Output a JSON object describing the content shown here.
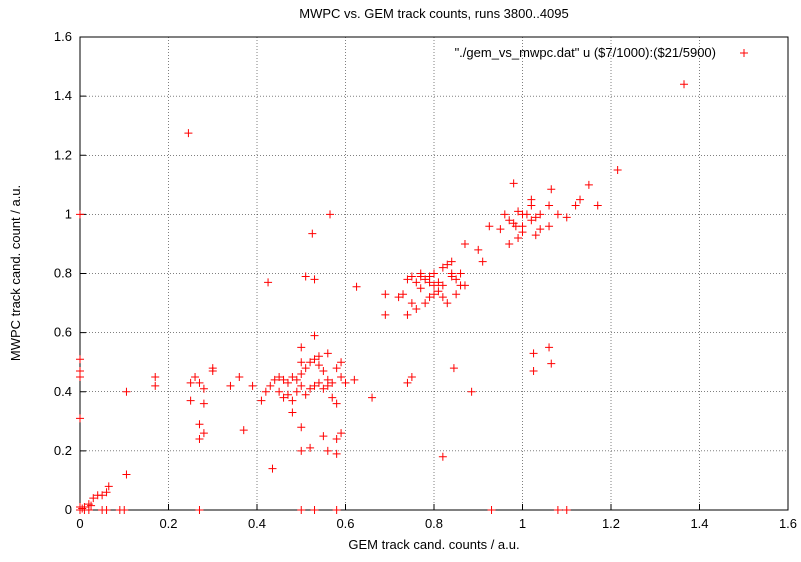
{
  "chart_data": {
    "type": "scatter",
    "title": "MWPC vs. GEM track counts, runs 3800..4095",
    "xlabel": "GEM track cand. counts / a.u.",
    "ylabel": "MWPC track cand. count / a.u.",
    "xlim": [
      0,
      1.6
    ],
    "ylim": [
      0,
      1.6
    ],
    "xticks": [
      0,
      0.2,
      0.4,
      0.6,
      0.8,
      1,
      1.2,
      1.4,
      1.6
    ],
    "yticks": [
      0,
      0.2,
      0.4,
      0.6,
      0.8,
      1,
      1.2,
      1.4,
      1.6
    ],
    "grid": true,
    "legend": "upper right",
    "series": [
      {
        "name": "\"./gem_vs_mwpc.dat\" u ($7/1000):($21/5900)",
        "color": "#ff0000",
        "x": [
          1.365,
          0.245,
          1.215,
          1.15,
          1.065,
          0.565,
          0,
          0.525,
          0.98,
          0.425,
          0.53,
          0.51,
          0.625,
          1.06,
          1.025,
          1.065,
          1.025,
          0.82,
          0.435,
          0.845,
          0.885,
          0.105,
          0.105,
          0.065,
          0.96,
          0.97,
          0.99,
          1.0,
          1.01,
          1.02,
          1.02,
          1.03,
          1.04,
          1.06,
          1.08,
          1.1,
          1.13,
          1.12,
          1.17,
          1.0,
          1.03,
          0.99,
          0.97,
          0.95,
          0.925,
          0.87,
          0.9,
          1.0,
          0.98,
          1.04,
          1.06,
          1.02,
          0.985,
          0.91,
          0.69,
          0.69,
          0.72,
          0.74,
          0.75,
          0.76,
          0.77,
          0.78,
          0.79,
          0.8,
          0.8,
          0.81,
          0.82,
          0.83,
          0.84,
          0.85,
          0.86,
          0.87,
          0.84,
          0.75,
          0.76,
          0.74,
          0.73,
          0.77,
          0.79,
          0.82,
          0.83,
          0.85,
          0.79,
          0.8,
          0.84,
          0.81,
          0.78,
          0.82,
          0.77,
          0.86,
          0.43,
          0.44,
          0.45,
          0.46,
          0.47,
          0.48,
          0.49,
          0.5,
          0.5,
          0.51,
          0.52,
          0.53,
          0.54,
          0.55,
          0.56,
          0.57,
          0.58,
          0.59,
          0.6,
          0.45,
          0.46,
          0.47,
          0.48,
          0.49,
          0.5,
          0.51,
          0.52,
          0.53,
          0.54,
          0.55,
          0.56,
          0.57,
          0.58,
          0.5,
          0.53,
          0.54,
          0.56,
          0.59,
          0.48,
          0.5,
          0.52,
          0.5,
          0.55,
          0.56,
          0.58,
          0.59,
          0.58,
          0.39,
          0.41,
          0.42,
          0.36,
          0.34,
          0.3,
          0.3,
          0.28,
          0.27,
          0.25,
          0.25,
          0.27,
          0.27,
          0.28,
          0.28,
          0.37,
          0.62,
          0.66,
          0.75,
          0.74,
          0.17,
          0.17,
          0.26,
          0,
          0.01,
          0.02,
          0.05,
          0.06,
          0.09,
          0.1,
          0.27,
          0.5,
          0.53,
          0.58,
          0.93,
          1.1,
          1.08,
          0,
          0,
          0,
          0,
          0,
          0.01,
          0.02,
          0.03,
          0.04,
          0.05,
          0.06,
          0.025,
          0.005
        ],
        "values": [
          1.44,
          1.275,
          1.15,
          1.1,
          1.085,
          1.0,
          1.0,
          0.935,
          1.105,
          0.77,
          0.78,
          0.79,
          0.755,
          0.55,
          0.53,
          0.495,
          0.47,
          0.18,
          0.14,
          0.48,
          0.4,
          0.4,
          0.12,
          0.08,
          1.0,
          0.98,
          1.01,
          0.96,
          1.0,
          1.05,
          1.03,
          0.99,
          1.0,
          1.03,
          1.0,
          0.99,
          1.05,
          1.03,
          1.03,
          0.94,
          0.93,
          0.92,
          0.9,
          0.95,
          0.96,
          0.9,
          0.88,
          1.0,
          0.97,
          0.95,
          0.96,
          0.98,
          0.96,
          0.84,
          0.73,
          0.66,
          0.72,
          0.78,
          0.79,
          0.77,
          0.8,
          0.78,
          0.79,
          0.8,
          0.76,
          0.77,
          0.82,
          0.83,
          0.8,
          0.78,
          0.76,
          0.76,
          0.84,
          0.7,
          0.68,
          0.66,
          0.73,
          0.75,
          0.72,
          0.72,
          0.7,
          0.73,
          0.77,
          0.73,
          0.79,
          0.74,
          0.7,
          0.76,
          0.79,
          0.8,
          0.42,
          0.44,
          0.45,
          0.44,
          0.43,
          0.45,
          0.44,
          0.46,
          0.5,
          0.48,
          0.5,
          0.51,
          0.49,
          0.47,
          0.44,
          0.43,
          0.48,
          0.45,
          0.43,
          0.4,
          0.38,
          0.39,
          0.37,
          0.4,
          0.42,
          0.39,
          0.41,
          0.42,
          0.43,
          0.41,
          0.42,
          0.38,
          0.36,
          0.55,
          0.59,
          0.52,
          0.53,
          0.5,
          0.33,
          0.28,
          0.21,
          0.2,
          0.25,
          0.2,
          0.24,
          0.26,
          0.19,
          0.42,
          0.37,
          0.4,
          0.45,
          0.42,
          0.47,
          0.48,
          0.41,
          0.43,
          0.43,
          0.37,
          0.29,
          0.24,
          0.26,
          0.36,
          0.27,
          0.44,
          0.38,
          0.45,
          0.43,
          0.42,
          0.45,
          0.45,
          0,
          0,
          0,
          0,
          0,
          0,
          0,
          0,
          0,
          0,
          0,
          0,
          0,
          0,
          0.51,
          0.47,
          0.45,
          0.31,
          0.01,
          0.01,
          0.02,
          0.04,
          0.05,
          0.05,
          0.06,
          0.015,
          0.005
        ]
      }
    ]
  }
}
